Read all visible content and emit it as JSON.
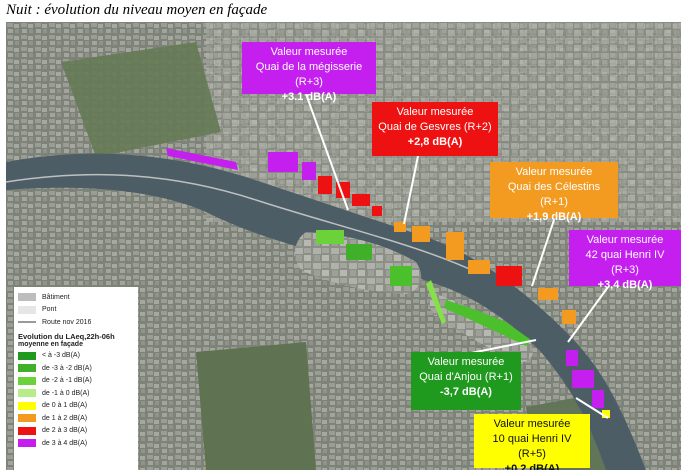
{
  "title": "Nuit : évolution du niveau moyen en façade",
  "colors": {
    "river": "#4c5d66",
    "city": "#8a8f88",
    "magenta": "#c51ff0",
    "red": "#ee1111",
    "orange": "#f39a21",
    "green_dark": "#1f9a1f",
    "green": "#4cc02c",
    "green_light": "#86e04a",
    "yellow": "#ffff00"
  },
  "legend": {
    "items": [
      {
        "label": "Bâtiment",
        "color": "#bdbdbd"
      },
      {
        "label": "Pont",
        "color": "#e6e6e6"
      },
      {
        "label": "Route nov 2016",
        "color": "#9a9a9a"
      }
    ],
    "heading": "Evolution du LAeq,22h-06h",
    "subheading": "moyenne en façade",
    "classes": [
      {
        "label": "< à -3 dB(A)",
        "color": "#1f9a1f"
      },
      {
        "label": "de -3 à -2 dB(A)",
        "color": "#40b02a"
      },
      {
        "label": "de -2 à -1 dB(A)",
        "color": "#6cd23a"
      },
      {
        "label": "de -1 à 0 dB(A)",
        "color": "#b7ec8a"
      },
      {
        "label": "de 0 à 1 dB(A)",
        "color": "#ffff00"
      },
      {
        "label": "de 1 à 2 dB(A)",
        "color": "#f39a21"
      },
      {
        "label": "de 2 à 3 dB(A)",
        "color": "#ee1111"
      },
      {
        "label": "de 3 à 4 dB(A)",
        "color": "#c51ff0"
      }
    ]
  },
  "callouts": [
    {
      "head": "Valeur mesurée",
      "place": "Quai de la mégisserie (R+3)",
      "value": "+3.1 dB(A)",
      "color": "#c51ff0"
    },
    {
      "head": "Valeur mesurée",
      "place": "Quai de Gesvres (R+2)",
      "value": "+2,8 dB(A)",
      "color": "#ee1111"
    },
    {
      "head": "Valeur mesurée",
      "place": "Quai des Célestins (R+1)",
      "value": "+1,9 dB(A)",
      "color": "#f39a21"
    },
    {
      "head": "Valeur mesurée",
      "place": "42 quai Henri IV (R+3)",
      "value": "+3,4 dB(A)",
      "color": "#c51ff0"
    },
    {
      "head": "Valeur mesurée",
      "place": "Quai d'Anjou (R+1)",
      "value": "-3,7 dB(A)",
      "color": "#1f9a1f"
    },
    {
      "head": "Valeur mesurée",
      "place": "10 quai Henri IV (R+5)",
      "value": "+0,2 dB(A)",
      "color": "#ffff00"
    }
  ]
}
